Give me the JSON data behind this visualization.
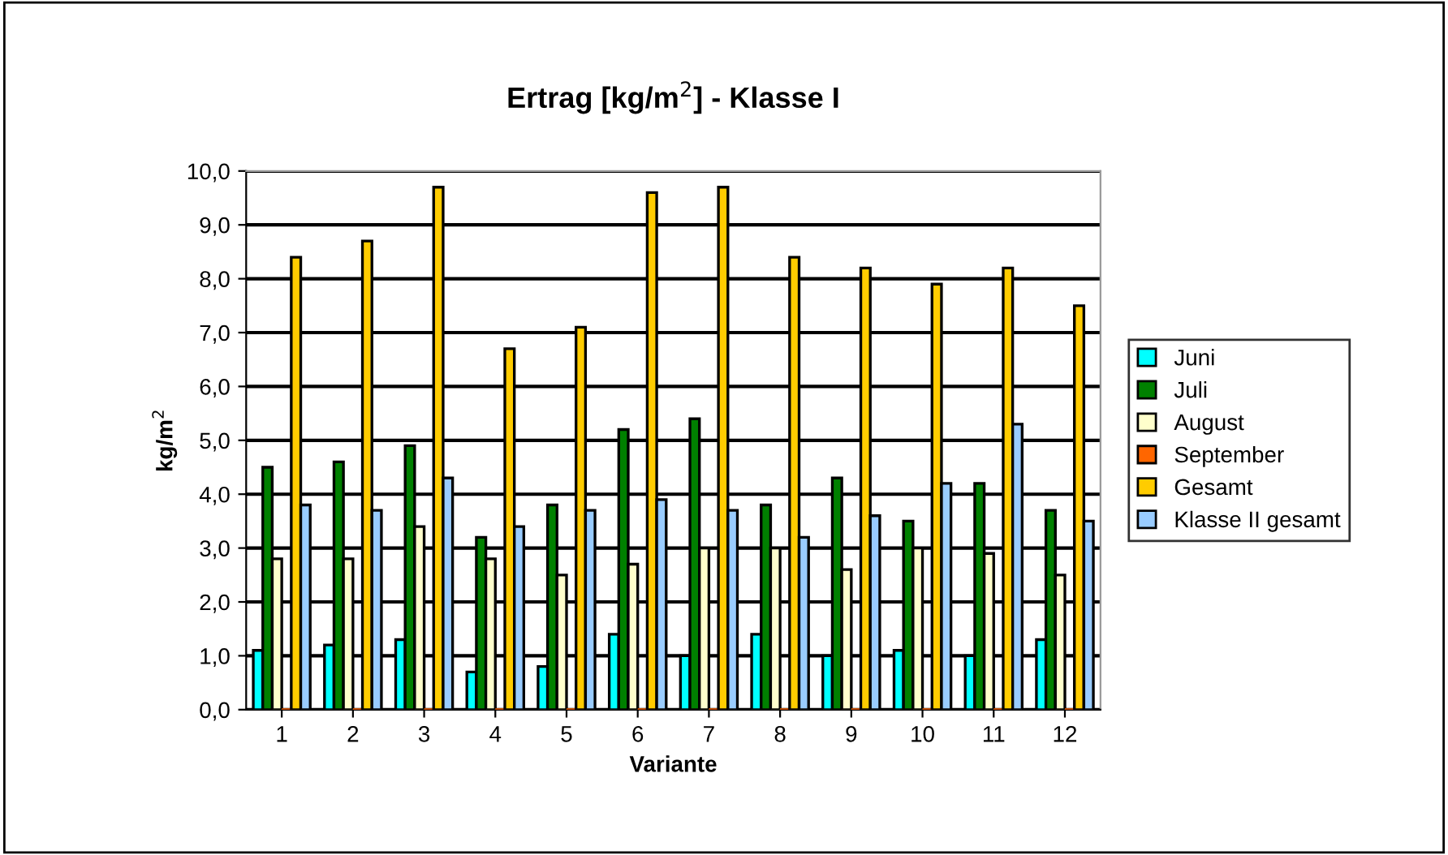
{
  "chart_data": {
    "type": "bar",
    "title": "Ertrag [kg/m$^{2}$] - Klasse I",
    "xlabel": "Variante",
    "ylabel": "kg/m$^{2}$",
    "categories": [
      "1",
      "2",
      "3",
      "4",
      "5",
      "6",
      "7",
      "8",
      "9",
      "10",
      "11",
      "12"
    ],
    "series": [
      {
        "name": "Juni",
        "color": "#00ffff",
        "values": [
          1.1,
          1.2,
          1.3,
          0.7,
          0.8,
          1.4,
          1.0,
          1.4,
          1.0,
          1.1,
          1.0,
          1.3
        ]
      },
      {
        "name": "Juli",
        "color": "#008000",
        "values": [
          4.5,
          4.6,
          4.9,
          3.2,
          3.8,
          5.2,
          5.4,
          3.8,
          4.3,
          3.5,
          4.2,
          3.7
        ]
      },
      {
        "name": "August",
        "color": "#ffffcc",
        "values": [
          2.8,
          2.8,
          3.4,
          2.8,
          2.5,
          2.7,
          3.0,
          3.0,
          2.6,
          3.0,
          2.9,
          2.5
        ]
      },
      {
        "name": "September",
        "color": "#ff6600",
        "values": [
          0,
          0,
          0,
          0,
          0,
          0,
          0,
          0,
          0,
          0,
          0,
          0
        ]
      },
      {
        "name": "Gesamt",
        "color": "#ffcc00",
        "values": [
          8.4,
          8.7,
          9.7,
          6.7,
          7.1,
          9.6,
          9.7,
          8.4,
          8.2,
          7.9,
          8.2,
          7.5
        ]
      },
      {
        "name": "Klasse II gesamt",
        "color": "#99ccff",
        "values": [
          3.8,
          3.7,
          4.3,
          3.4,
          3.7,
          3.9,
          3.7,
          3.2,
          3.6,
          4.2,
          5.3,
          3.5
        ]
      }
    ],
    "ylim": [
      0,
      10
    ],
    "yticks": [
      {
        "value": 0,
        "label": "0,0"
      },
      {
        "value": 1,
        "label": "1,0"
      },
      {
        "value": 2,
        "label": "2,0"
      },
      {
        "value": 3,
        "label": "3,0"
      },
      {
        "value": 4,
        "label": "4,0"
      },
      {
        "value": 5,
        "label": "5,0"
      },
      {
        "value": 6,
        "label": "6,0"
      },
      {
        "value": 7,
        "label": "7,0"
      },
      {
        "value": 8,
        "label": "8,0"
      },
      {
        "value": 9,
        "label": "9,0"
      },
      {
        "value": 10,
        "label": "10,0"
      }
    ],
    "grid": "y",
    "legend": "right"
  }
}
